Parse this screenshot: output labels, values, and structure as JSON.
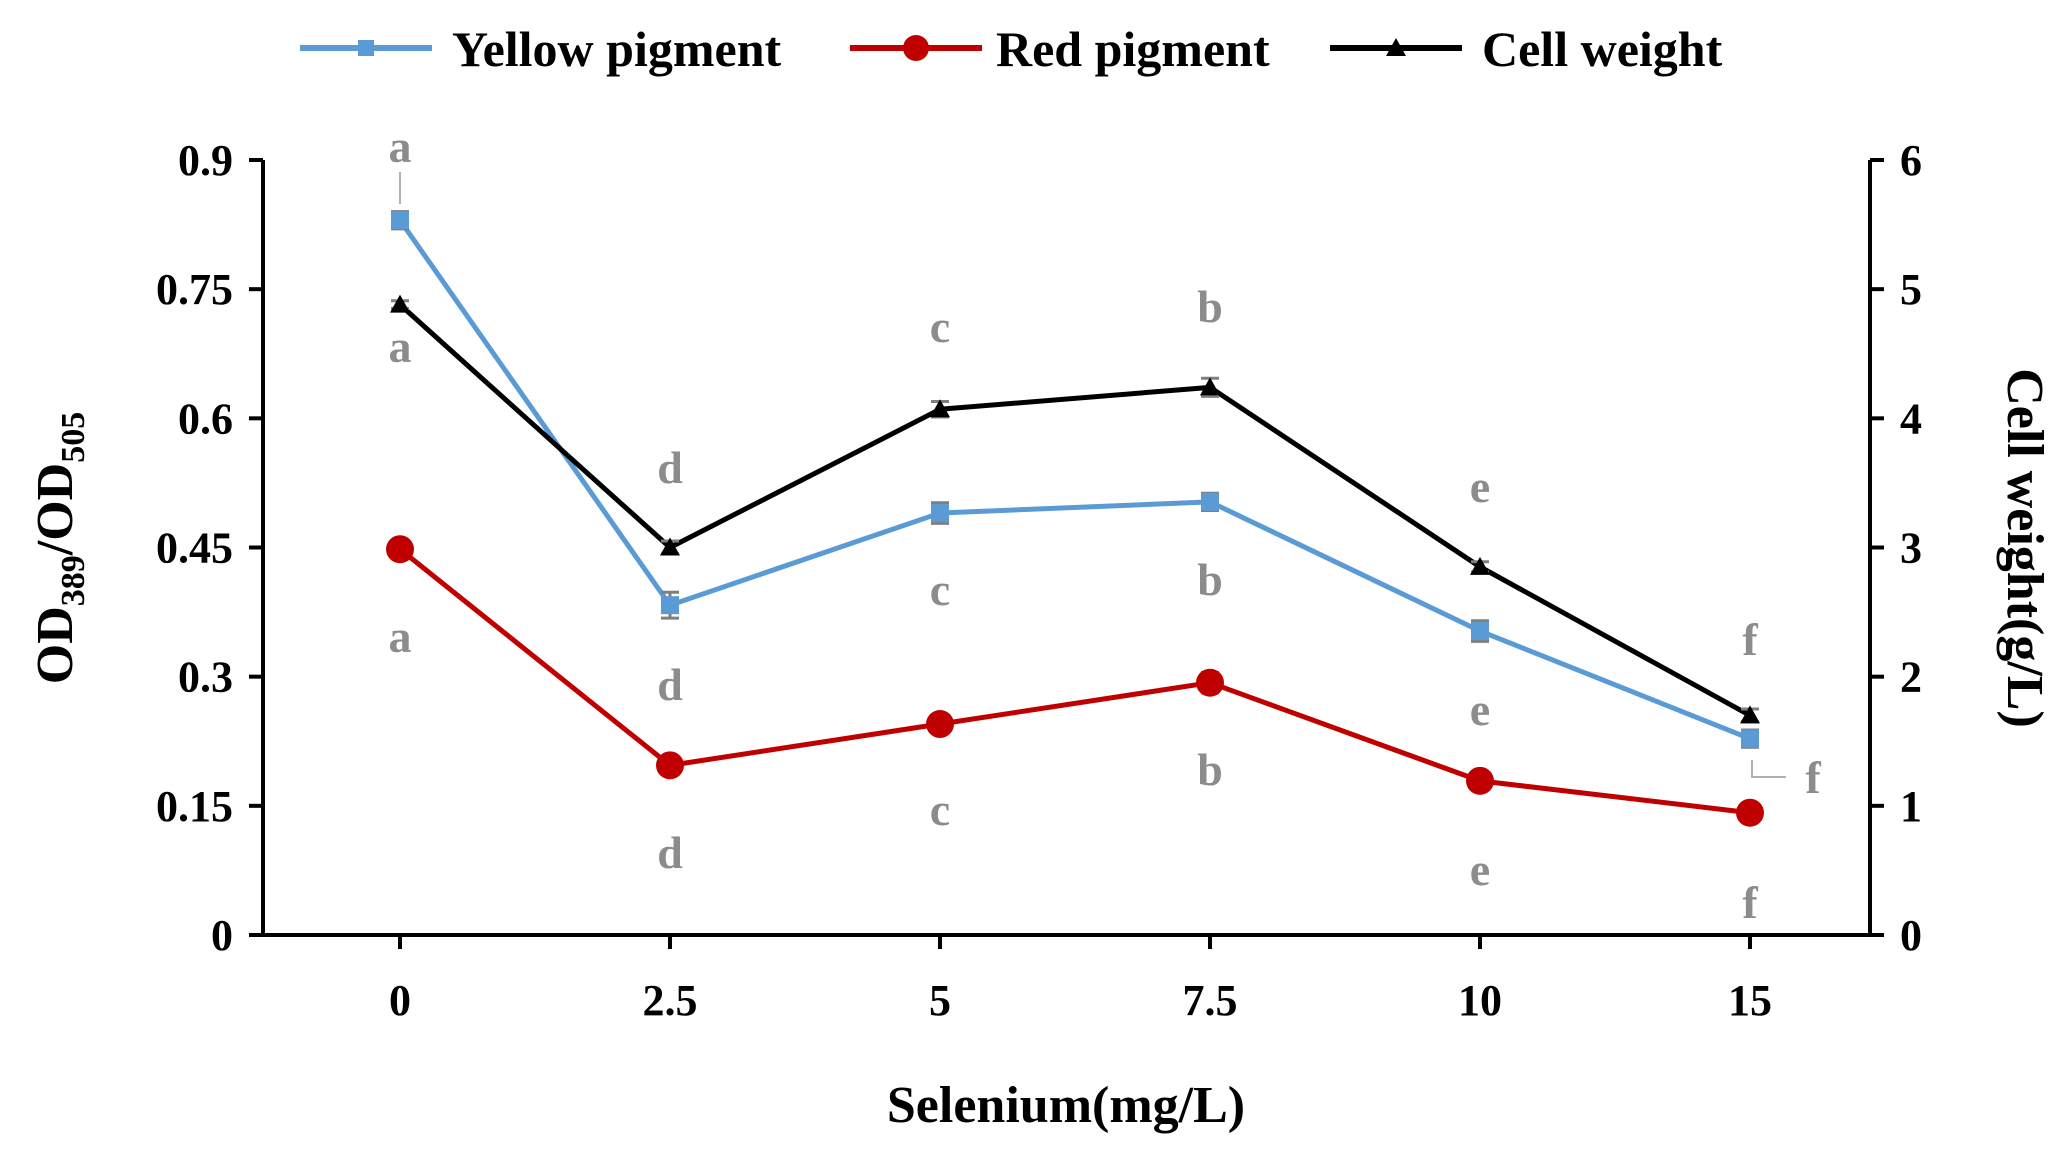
{
  "chart_data": {
    "type": "line",
    "title": "",
    "xlabel": "Selenium(mg/L)",
    "ylabel": {
      "main": "OD",
      "sub1": "389",
      "slash": "/OD",
      "sub2": "505"
    },
    "y2label": "Cell weight(g/L)",
    "categories": [
      "0",
      "2.5",
      "5",
      "7.5",
      "10",
      "15"
    ],
    "ylim": [
      0,
      0.9
    ],
    "yticks": [
      "0",
      "0.15",
      "0.3",
      "0.45",
      "0.6",
      "0.75",
      "0.9"
    ],
    "y2lim": [
      0,
      6
    ],
    "y2ticks": [
      "0",
      "1",
      "2",
      "3",
      "4",
      "5",
      "6"
    ],
    "legend_position": "top",
    "series": [
      {
        "name": "Yellow pigment",
        "axis": "left",
        "color": "#5b9bd5",
        "marker": "square",
        "values": [
          0.83,
          0.383,
          0.49,
          0.503,
          0.353,
          0.228
        ],
        "errors": [
          0.01,
          0.015,
          0.012,
          0.01,
          0.012,
          0.01
        ],
        "letters": [
          "a",
          "d",
          "c",
          "b",
          "e",
          "f"
        ]
      },
      {
        "name": "Red pigment",
        "axis": "left",
        "color": "#c00000",
        "marker": "circle",
        "values": [
          0.448,
          0.197,
          0.245,
          0.293,
          0.179,
          0.142
        ],
        "errors": [
          0.005,
          0.008,
          0.006,
          0.012,
          0.006,
          0.005
        ],
        "letters": [
          "a",
          "d",
          "c",
          "b",
          "e",
          "f"
        ]
      },
      {
        "name": "Cell weight",
        "axis": "right",
        "color": "#000000",
        "marker": "triangle",
        "values": [
          4.88,
          3.0,
          4.07,
          4.24,
          2.85,
          1.7
        ],
        "errors": [
          0.03,
          0.05,
          0.06,
          0.07,
          0.04,
          0.05
        ],
        "letters": [
          "a",
          "d",
          "c",
          "b",
          "e",
          "f"
        ]
      }
    ]
  }
}
